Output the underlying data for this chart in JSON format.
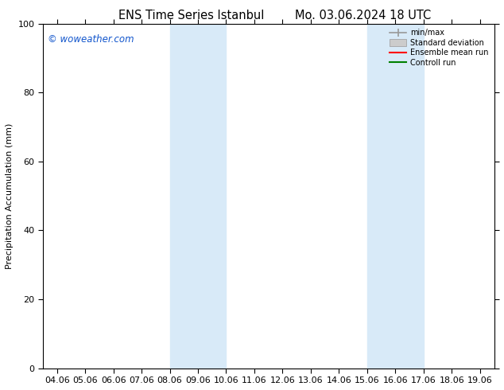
{
  "title": "ENS Time Series Istanbul",
  "title2": "Mo. 03.06.2024 18 UTC",
  "ylabel": "Precipitation Accumulation (mm)",
  "watermark": "© woweather.com",
  "watermark_color": "#1155cc",
  "ylim": [
    0,
    100
  ],
  "yticks": [
    0,
    20,
    40,
    60,
    80,
    100
  ],
  "x_labels": [
    "04.06",
    "05.06",
    "06.06",
    "07.06",
    "08.06",
    "09.06",
    "10.06",
    "11.06",
    "12.06",
    "13.06",
    "14.06",
    "15.06",
    "16.06",
    "17.06",
    "18.06",
    "19.06"
  ],
  "x_values": [
    4,
    5,
    6,
    7,
    8,
    9,
    10,
    11,
    12,
    13,
    14,
    15,
    16,
    17,
    18,
    19
  ],
  "xlim": [
    3.5,
    19.5
  ],
  "shaded_regions": [
    {
      "x_start": 8.0,
      "x_end": 10.0,
      "color": "#d8eaf8",
      "alpha": 1.0
    },
    {
      "x_start": 15.0,
      "x_end": 17.0,
      "color": "#d8eaf8",
      "alpha": 1.0
    }
  ],
  "legend_items": [
    {
      "label": "min/max",
      "color": "#aaaaaa",
      "style": "line_with_cap"
    },
    {
      "label": "Standard deviation",
      "color": "#cccccc",
      "style": "filled_box"
    },
    {
      "label": "Ensemble mean run",
      "color": "#ff0000",
      "style": "line"
    },
    {
      "label": "Controll run",
      "color": "#008000",
      "style": "line"
    }
  ],
  "bg_color": "#ffffff",
  "plot_bg_color": "#ffffff",
  "spine_color": "#000000",
  "tick_color": "#000000",
  "font_size": 8,
  "title_font_size": 10.5
}
